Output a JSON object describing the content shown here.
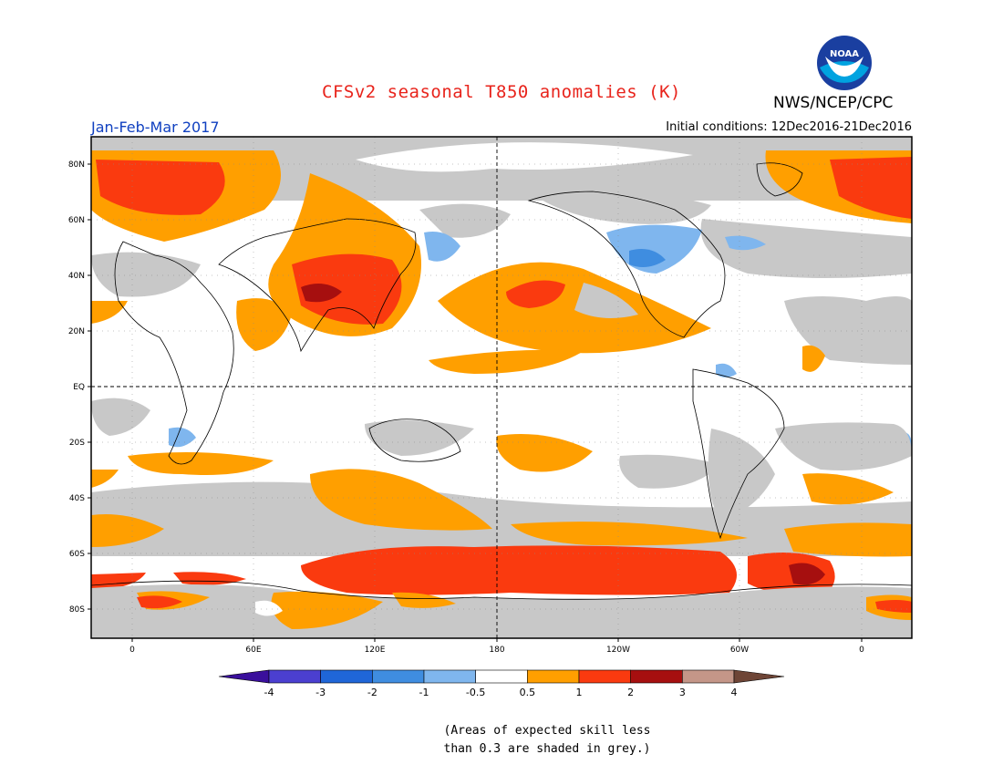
{
  "header": {
    "title": "CFSv2 seasonal T850 anomalies (K)",
    "agency": "NWS/NCEP/CPC",
    "logo_text": "NOAA",
    "season": "Jan-Feb-Mar 2017",
    "initial_conditions": "Initial conditions: 12Dec2016-21Dec2016"
  },
  "map": {
    "lat_labels": [
      "80N",
      "60N",
      "40N",
      "20N",
      "EQ",
      "20S",
      "40S",
      "60S",
      "80S"
    ],
    "lon_labels": [
      "0",
      "60E",
      "120E",
      "180",
      "120W",
      "60W",
      "0"
    ]
  },
  "colorbar": {
    "labels": [
      "-4",
      "-3",
      "-2",
      "-1",
      "-0.5",
      "0.5",
      "1",
      "2",
      "3",
      "4"
    ],
    "colors": [
      "#3a0f9c",
      "#4b3fd0",
      "#1f66d8",
      "#3f8de0",
      "#7fb6ee",
      "#ffffff",
      "#ff9f00",
      "#fa3a0f",
      "#a60f0f",
      "#c49688",
      "#6e4536"
    ]
  },
  "note": {
    "line1": "(Areas of expected skill less",
    "line2": "than 0.3 are shaded in grey.)"
  }
}
